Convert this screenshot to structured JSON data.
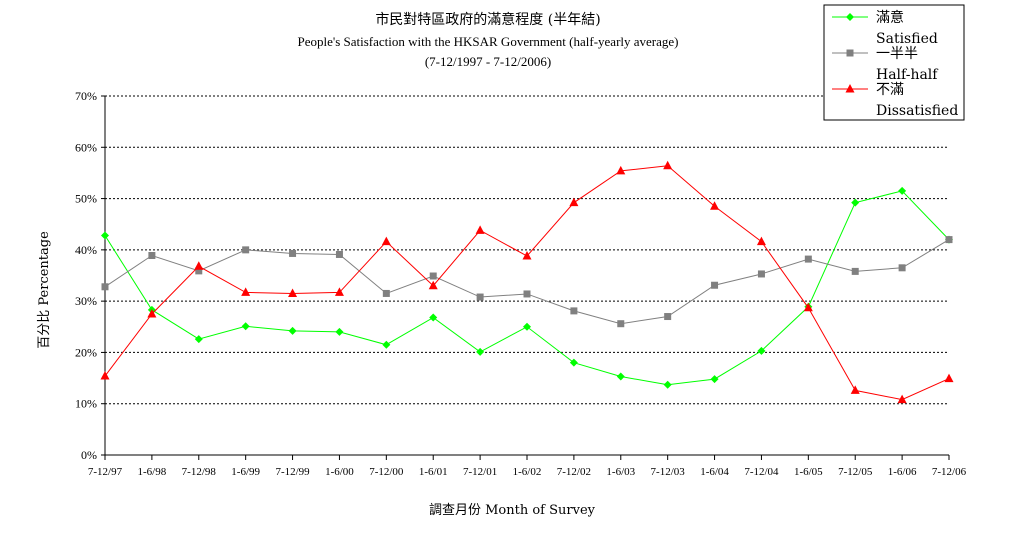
{
  "chart_data": {
    "type": "line",
    "title": "市民對特區政府的滿意程度 (半年結)",
    "subtitle": "People's Satisfaction with the HKSAR Government (half-yearly average)",
    "subtitle2": "(7-12/1997 - 7-12/2006)",
    "xlabel": "調查月份 Month of Survey",
    "ylabel": "百分比 Percentage",
    "ylim": [
      0,
      70
    ],
    "yticks": [
      "0%",
      "10%",
      "20%",
      "30%",
      "40%",
      "50%",
      "60%",
      "70%"
    ],
    "grid": "horizontal dashed",
    "legend_position": "top-right",
    "categories": [
      "7-12/97",
      "1-6/98",
      "7-12/98",
      "1-6/99",
      "7-12/99",
      "1-6/00",
      "7-12/00",
      "1-6/01",
      "7-12/01",
      "1-6/02",
      "7-12/02",
      "1-6/03",
      "7-12/03",
      "1-6/04",
      "7-12/04",
      "1-6/05",
      "7-12/05",
      "1-6/06",
      "7-12/06"
    ],
    "series": [
      {
        "name": "滿意",
        "name_en": "Satisfied",
        "color": "#00ff00",
        "marker": "diamond",
        "values": [
          42.8,
          28.3,
          22.6,
          25.1,
          24.2,
          24.0,
          21.5,
          26.8,
          20.1,
          25.0,
          18.0,
          15.3,
          13.7,
          14.8,
          20.3,
          28.9,
          49.2,
          51.5,
          42.0
        ]
      },
      {
        "name": "一半半",
        "name_en": "Half-half",
        "color": "#808080",
        "marker": "square",
        "values": [
          32.8,
          38.9,
          35.9,
          40.0,
          39.3,
          39.1,
          31.5,
          34.9,
          30.8,
          31.4,
          28.1,
          25.6,
          27.0,
          33.1,
          35.3,
          38.2,
          35.8,
          36.5,
          42.0
        ]
      },
      {
        "name": "不滿",
        "name_en": "Dissatisfied",
        "color": "#ff0000",
        "marker": "triangle",
        "values": [
          15.4,
          27.5,
          36.8,
          31.7,
          31.5,
          31.7,
          41.6,
          33.0,
          43.8,
          38.8,
          49.2,
          55.4,
          56.4,
          48.5,
          41.6,
          28.7,
          12.6,
          10.8,
          14.9
        ]
      }
    ]
  }
}
